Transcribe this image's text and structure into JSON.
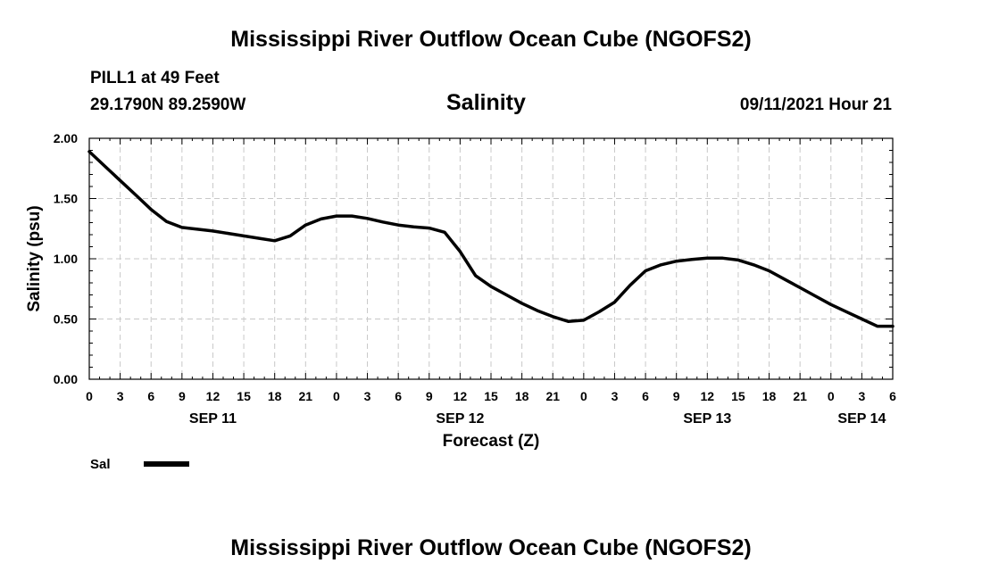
{
  "header": {
    "title": "Mississippi River Outflow Ocean Cube (NGOFS2)",
    "station": "PILL1 at 49 Feet",
    "coordinates": "29.1790N  89.2590W",
    "variable": "Salinity",
    "timestamp": "09/11/2021 Hour 21"
  },
  "footer": {
    "title": "Mississippi River Outflow Ocean Cube (NGOFS2)"
  },
  "chart_data": {
    "type": "line",
    "title": "Salinity",
    "xlabel": "Forecast (Z)",
    "ylabel": "Salinity (psu)",
    "ylim": [
      0,
      2
    ],
    "xlim": [
      0,
      78
    ],
    "x_unit": "hours from SEP 11 00Z",
    "y_ticks": [
      "0.00",
      "0.50",
      "1.00",
      "1.50",
      "2.00"
    ],
    "x_tick_labels": [
      "0",
      "3",
      "6",
      "9",
      "12",
      "15",
      "18",
      "21",
      "0",
      "3",
      "6",
      "9",
      "12",
      "15",
      "18",
      "21",
      "0",
      "3",
      "6",
      "9",
      "12",
      "15",
      "18",
      "21",
      "0",
      "3",
      "6"
    ],
    "date_labels": [
      {
        "label": "SEP 11",
        "hour": 12
      },
      {
        "label": "SEP 12",
        "hour": 36
      },
      {
        "label": "SEP 13",
        "hour": 60
      },
      {
        "label": "SEP 14",
        "hour": 75
      }
    ],
    "grid": true,
    "legend": [
      {
        "name": "Sal",
        "position": "bottom-left"
      }
    ],
    "series": [
      {
        "name": "Sal",
        "x": [
          0,
          1.5,
          3,
          4.5,
          6,
          7.5,
          9,
          10.5,
          12,
          13.5,
          15,
          16.5,
          18,
          19.5,
          21,
          22.5,
          24,
          25.5,
          27,
          28.5,
          30,
          31.5,
          33,
          34.5,
          36,
          37.5,
          39,
          40.5,
          42,
          43.5,
          45,
          46.5,
          48,
          49.5,
          51,
          52.5,
          54,
          55.5,
          57,
          58.5,
          60,
          61.5,
          63,
          64.5,
          66,
          67.5,
          69,
          70.5,
          72,
          73.5,
          75,
          76.5,
          78
        ],
        "values": [
          1.89,
          1.77,
          1.65,
          1.53,
          1.41,
          1.31,
          1.26,
          1.245,
          1.23,
          1.21,
          1.19,
          1.17,
          1.15,
          1.19,
          1.28,
          1.33,
          1.355,
          1.355,
          1.335,
          1.305,
          1.28,
          1.265,
          1.255,
          1.22,
          1.06,
          0.86,
          0.77,
          0.7,
          0.63,
          0.57,
          0.52,
          0.48,
          0.49,
          0.56,
          0.64,
          0.78,
          0.9,
          0.95,
          0.98,
          0.995,
          1.005,
          1.005,
          0.99,
          0.95,
          0.9,
          0.83,
          0.76,
          0.69,
          0.62,
          0.56,
          0.5,
          0.44,
          0.44
        ]
      }
    ]
  }
}
